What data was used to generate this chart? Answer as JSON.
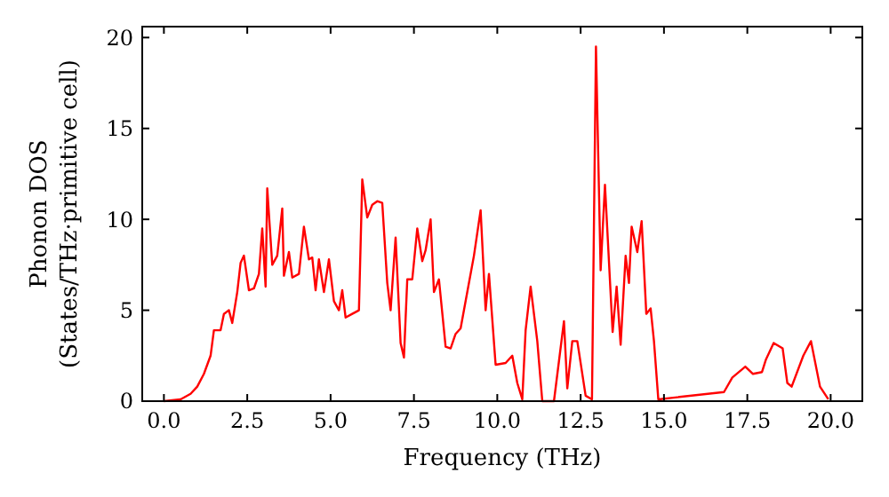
{
  "chart_data": {
    "type": "line",
    "xlabel": "Frequency (THz)",
    "ylabel": "Phonon DOS\n(States/THz·primitive cell)",
    "xlim": [
      -0.65,
      20.95
    ],
    "ylim": [
      0,
      20.6
    ],
    "xticks": [
      {
        "value": 0,
        "label": "0.0"
      },
      {
        "value": 2.5,
        "label": "2.5"
      },
      {
        "value": 5,
        "label": "5.0"
      },
      {
        "value": 7.5,
        "label": "7.5"
      },
      {
        "value": 10,
        "label": "10.0"
      },
      {
        "value": 12.5,
        "label": "12.5"
      },
      {
        "value": 15,
        "label": "15.0"
      },
      {
        "value": 17.5,
        "label": "17.5"
      },
      {
        "value": 20,
        "label": "20.0"
      }
    ],
    "yticks": [
      0,
      5,
      10,
      15,
      20
    ],
    "grid": false,
    "marker": "none",
    "line_style": "solid",
    "series": [
      {
        "color": "#ff0000",
        "x": [
          0,
          0.5,
          0.8,
          1.0,
          1.2,
          1.4,
          1.5,
          1.7,
          1.8,
          1.95,
          2.05,
          2.2,
          2.3,
          2.4,
          2.55,
          2.7,
          2.85,
          2.95,
          3.05,
          3.1,
          3.25,
          3.4,
          3.55,
          3.6,
          3.75,
          3.85,
          4.05,
          4.2,
          4.35,
          4.45,
          4.55,
          4.65,
          4.8,
          4.95,
          5.1,
          5.25,
          5.35,
          5.45,
          5.65,
          5.85,
          5.95,
          6.1,
          6.25,
          6.4,
          6.55,
          6.7,
          6.8,
          6.95,
          7.1,
          7.2,
          7.3,
          7.45,
          7.6,
          7.75,
          7.85,
          8.0,
          8.1,
          8.25,
          8.45,
          8.6,
          8.75,
          8.9,
          9.1,
          9.3,
          9.5,
          9.65,
          9.75,
          9.95,
          10.25,
          10.45,
          10.6,
          10.75,
          10.85,
          11.0,
          11.2,
          11.35,
          11.7,
          12.0,
          12.1,
          12.25,
          12.4,
          12.65,
          12.84,
          12.96,
          13.1,
          13.23,
          13.46,
          13.58,
          13.7,
          13.85,
          13.95,
          14.03,
          14.2,
          14.33,
          14.47,
          14.6,
          14.7,
          14.83,
          16.8,
          17.05,
          17.44,
          17.67,
          17.94,
          18.06,
          18.29,
          18.56,
          18.7,
          18.83,
          19.18,
          19.41,
          19.68,
          19.93
        ],
        "values": [
          0,
          0.1,
          0.4,
          0.8,
          1.5,
          2.5,
          3.9,
          3.9,
          4.8,
          5.0,
          4.3,
          6.0,
          7.6,
          8.0,
          6.1,
          6.2,
          7.0,
          9.5,
          6.3,
          11.7,
          7.5,
          8.0,
          10.6,
          6.9,
          8.2,
          6.8,
          7.0,
          9.6,
          7.8,
          7.9,
          6.1,
          7.8,
          6.0,
          7.8,
          5.5,
          5.0,
          6.1,
          4.6,
          4.8,
          5.0,
          12.2,
          10.1,
          10.8,
          11.0,
          10.9,
          6.5,
          5.0,
          9.0,
          3.2,
          2.4,
          6.7,
          6.7,
          9.5,
          7.7,
          8.3,
          10.0,
          6.0,
          6.7,
          3.0,
          2.9,
          3.7,
          4.0,
          6.0,
          8.0,
          10.5,
          5.0,
          7.0,
          2.0,
          2.1,
          2.5,
          1.0,
          0.1,
          3.9,
          6.3,
          3.3,
          0,
          0,
          4.4,
          0.7,
          3.3,
          3.3,
          0.3,
          0.1,
          19.5,
          7.2,
          11.9,
          3.8,
          6.3,
          3.1,
          8.0,
          6.5,
          9.6,
          8.2,
          9.9,
          4.8,
          5.1,
          3.3,
          0.1,
          0.5,
          1.3,
          1.9,
          1.5,
          1.6,
          2.3,
          3.2,
          2.9,
          1.0,
          0.8,
          2.5,
          3.3,
          0.8,
          0.1
        ]
      }
    ]
  }
}
